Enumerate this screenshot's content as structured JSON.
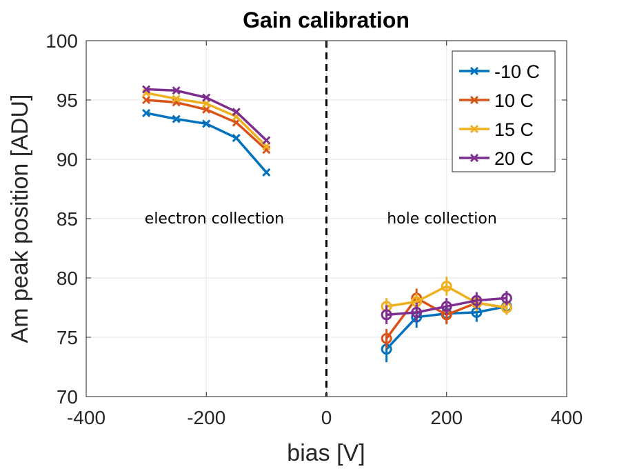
{
  "chart_data": {
    "type": "line",
    "title": "Gain calibration",
    "xlabel": "bias [V]",
    "ylabel": "Am peak position [ADU]",
    "xlim": [
      -400,
      400
    ],
    "ylim": [
      70,
      100
    ],
    "xticks": [
      -400,
      -200,
      0,
      200,
      400
    ],
    "yticks": [
      70,
      75,
      80,
      85,
      90,
      95,
      100
    ],
    "grid": true,
    "legend_position": "top-right",
    "vline": {
      "x": 0,
      "style": "dashed"
    },
    "annotations": [
      {
        "text": "electron collection",
        "x": -200,
        "y": 85
      },
      {
        "text": "hole collection",
        "x": 195,
        "y": 85
      }
    ],
    "series": [
      {
        "name": "-10 C",
        "color": "#0072BD",
        "electron": {
          "x": [
            -300,
            -250,
            -200,
            -150,
            -100
          ],
          "y": [
            93.9,
            93.4,
            93.0,
            91.8,
            88.9
          ]
        },
        "hole": {
          "x": [
            100,
            150,
            200,
            250,
            300
          ],
          "y": [
            74.0,
            76.7,
            77.0,
            77.1,
            77.6
          ],
          "err": [
            1.1,
            0.9,
            0.8,
            0.8,
            0.6
          ]
        }
      },
      {
        "name": "10 C",
        "color": "#D95319",
        "electron": {
          "x": [
            -300,
            -250,
            -200,
            -150,
            -100
          ],
          "y": [
            95.0,
            94.8,
            94.2,
            93.1,
            90.8
          ]
        },
        "hole": {
          "x": [
            100,
            150,
            200,
            250,
            300
          ],
          "y": [
            74.9,
            78.3,
            76.9,
            77.9,
            77.5
          ],
          "err": [
            0.8,
            0.8,
            0.8,
            0.7,
            0.6
          ]
        }
      },
      {
        "name": "15 C",
        "color": "#EDB120",
        "electron": {
          "x": [
            -300,
            -250,
            -200,
            -150,
            -100
          ],
          "y": [
            95.6,
            95.1,
            94.7,
            93.6,
            91.1
          ]
        },
        "hole": {
          "x": [
            100,
            150,
            200,
            250,
            300
          ],
          "y": [
            77.6,
            78.0,
            79.3,
            77.9,
            77.5
          ],
          "err": [
            0.7,
            0.7,
            0.8,
            0.7,
            0.6
          ]
        }
      },
      {
        "name": "20 C",
        "color": "#7E2F8E",
        "electron": {
          "x": [
            -300,
            -250,
            -200,
            -150,
            -100
          ],
          "y": [
            95.9,
            95.8,
            95.2,
            94.0,
            91.6
          ]
        },
        "hole": {
          "x": [
            100,
            150,
            200,
            250,
            300
          ],
          "y": [
            76.9,
            77.1,
            77.6,
            78.1,
            78.3
          ],
          "err": [
            0.8,
            0.8,
            0.7,
            0.7,
            0.6
          ]
        }
      }
    ]
  }
}
